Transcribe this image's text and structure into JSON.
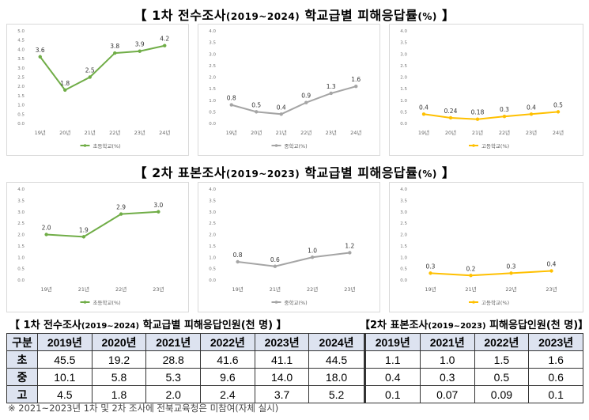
{
  "title1": {
    "bracket_l": "【",
    "main": "1차 전수조사",
    "range": "(2019~2024)",
    "rest": " 학교급별 피해응답률",
    "unit": "(%)",
    "bracket_r": "】"
  },
  "title2": {
    "bracket_l": "【",
    "main": "2차 표본조사",
    "range": "(2019~2023)",
    "rest": " 학교급별 피해응답률",
    "unit": "(%)",
    "bracket_r": "】"
  },
  "chart_data": [
    {
      "id": "c1",
      "type": "line",
      "categories": [
        "19년",
        "20년",
        "21년",
        "22년",
        "23년",
        "24년"
      ],
      "series": [
        {
          "name": "초등학교(%)",
          "values": [
            3.6,
            1.8,
            2.5,
            3.8,
            3.9,
            4.2
          ],
          "labels": [
            "3.6",
            "1.8",
            "2.5",
            "3.8",
            "3.9",
            "4.2"
          ],
          "color": "#70ad47"
        }
      ],
      "ylim": [
        0,
        5
      ],
      "yticks": [
        "0.0",
        "0.5",
        "1.0",
        "1.5",
        "2.0",
        "2.5",
        "3.0",
        "3.5",
        "4.0",
        "4.5",
        "5.0"
      ],
      "legend": "bottom"
    },
    {
      "id": "c2",
      "type": "line",
      "categories": [
        "19년",
        "20년",
        "21년",
        "22년",
        "23년",
        "24년"
      ],
      "series": [
        {
          "name": "중학교(%)",
          "values": [
            0.8,
            0.5,
            0.4,
            0.9,
            1.3,
            1.6
          ],
          "labels": [
            "0.8",
            "0.5",
            "0.4",
            "0.9",
            "1.3",
            "1.6"
          ],
          "color": "#a5a5a5"
        }
      ],
      "ylim": [
        0,
        4
      ],
      "yticks": [
        "0.0",
        "0.5",
        "1.0",
        "1.5",
        "2.0",
        "2.5",
        "3.0",
        "3.5",
        "4.0"
      ],
      "legend": "bottom"
    },
    {
      "id": "c3",
      "type": "line",
      "categories": [
        "19년",
        "20년",
        "21년",
        "22년",
        "23년",
        "24년"
      ],
      "series": [
        {
          "name": "고등학교(%)",
          "values": [
            0.4,
            0.24,
            0.18,
            0.3,
            0.4,
            0.5
          ],
          "labels": [
            "0.4",
            "0.24",
            "0.18",
            "0.3",
            "0.4",
            "0.5"
          ],
          "color": "#ffc000"
        }
      ],
      "ylim": [
        0,
        4
      ],
      "yticks": [
        "0.0",
        "0.5",
        "1.0",
        "1.5",
        "2.0",
        "2.5",
        "3.0",
        "3.5",
        "4.0"
      ],
      "legend": "bottom"
    },
    {
      "id": "c4",
      "type": "line",
      "categories": [
        "19년",
        "21년",
        "22년",
        "23년"
      ],
      "series": [
        {
          "name": "초등학교(%)",
          "values": [
            2.0,
            1.9,
            2.9,
            3.0
          ],
          "labels": [
            "2.0",
            "1.9",
            "2.9",
            "3.0"
          ],
          "color": "#70ad47"
        }
      ],
      "ylim": [
        0,
        4
      ],
      "yticks": [
        "0.0",
        "0.5",
        "1.0",
        "1.5",
        "2.0",
        "2.5",
        "3.0",
        "3.5",
        "4.0"
      ],
      "legend": "bottom"
    },
    {
      "id": "c5",
      "type": "line",
      "categories": [
        "19년",
        "21년",
        "22년",
        "23년"
      ],
      "series": [
        {
          "name": "중학교(%)",
          "values": [
            0.8,
            0.6,
            1.0,
            1.2
          ],
          "labels": [
            "0.8",
            "0.6",
            "1.0",
            "1.2"
          ],
          "color": "#a5a5a5"
        }
      ],
      "ylim": [
        0,
        4
      ],
      "yticks": [
        "0.0",
        "0.5",
        "1.0",
        "1.5",
        "2.0",
        "2.5",
        "3.0",
        "3.5",
        "4.0"
      ],
      "legend": "bottom"
    },
    {
      "id": "c6",
      "type": "line",
      "categories": [
        "19년",
        "21년",
        "22년",
        "23년"
      ],
      "series": [
        {
          "name": "고등학교(%)",
          "values": [
            0.3,
            0.2,
            0.3,
            0.4
          ],
          "labels": [
            "0.3",
            "0.2",
            "0.3",
            "0.4"
          ],
          "color": "#ffc000"
        }
      ],
      "ylim": [
        0,
        4
      ],
      "yticks": [
        "0.0",
        "0.5",
        "1.0",
        "1.5",
        "2.0",
        "2.5",
        "3.0",
        "3.5",
        "4.0"
      ],
      "legend": "bottom"
    }
  ],
  "table": {
    "header_left": {
      "open": "【 1차 전수조사",
      "range": "(2019~2024)",
      "rest": " 학교급별 피해응답인원(천 명) 】"
    },
    "header_right": {
      "open": "【2차 표본조사",
      "range": "(2019~2023)",
      "rest": " 피해응답인원(천 명)】"
    },
    "columns": [
      "구분",
      "2019년",
      "2020년",
      "2021년",
      "2022년",
      "2023년",
      "2024년",
      "2019년",
      "2021년",
      "2022년",
      "2023년"
    ],
    "rows": [
      [
        "초",
        "45.5",
        "19.2",
        "28.8",
        "41.6",
        "41.1",
        "44.5",
        "1.1",
        "1.0",
        "1.5",
        "1.6"
      ],
      [
        "중",
        "10.1",
        "5.8",
        "5.3",
        "9.6",
        "14.0",
        "18.0",
        "0.4",
        "0.3",
        "0.5",
        "0.6"
      ],
      [
        "고",
        "4.5",
        "1.8",
        "2.0",
        "2.4",
        "3.7",
        "5.2",
        "0.1",
        "0.07",
        "0.09",
        "0.1"
      ]
    ]
  },
  "footnote": "※ 2021~2023년 1차 및 2차 조사에 전북교육청은 미참여(자체 실시)"
}
